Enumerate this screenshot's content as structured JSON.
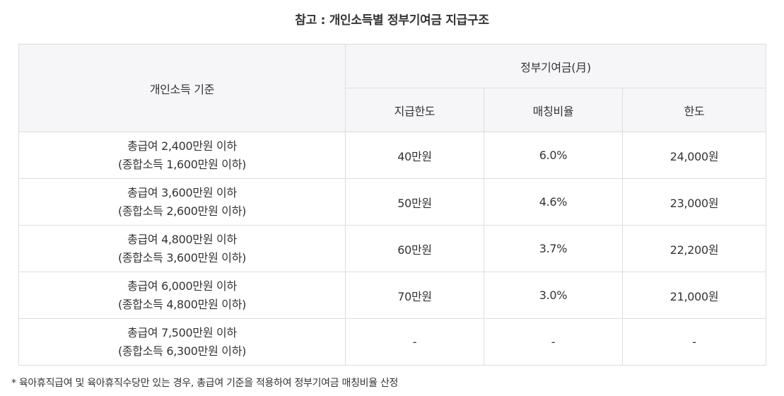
{
  "title": "참고 : 개인소득별 정부기여금 지급구조",
  "table": {
    "header_criteria": "개인소득 기준",
    "header_group": "정부기여금(月)",
    "header_cols": [
      "지급한도",
      "매칭비율",
      "한도"
    ],
    "rows": [
      {
        "line1": "총급여 2,400만원 이하",
        "line2": "(종합소득 1,600만원 이하)",
        "limit": "40만원",
        "ratio": "6.0%",
        "cap": "24,000원"
      },
      {
        "line1": "총급여 3,600만원 이하",
        "line2": "(종합소득 2,600만원 이하)",
        "limit": "50만원",
        "ratio": "4.6%",
        "cap": "23,000원"
      },
      {
        "line1": "총급여 4,800만원 이하",
        "line2": "(종합소득 3,600만원 이하)",
        "limit": "60만원",
        "ratio": "3.7%",
        "cap": "22,200원"
      },
      {
        "line1": "총급여 6,000만원 이하",
        "line2": "(종합소득 4,800만원 이하)",
        "limit": "70만원",
        "ratio": "3.0%",
        "cap": "21,000원"
      },
      {
        "line1": "총급여 7,500만원 이하",
        "line2": "(종합소득 6,300만원 이하)",
        "limit": "-",
        "ratio": "-",
        "cap": "-"
      }
    ]
  },
  "footnote": "* 육아휴직급여 및 육아휴직수당만 있는 경우, 총급여 기준을 적용하여 정부기여금 매칭비율 산정"
}
